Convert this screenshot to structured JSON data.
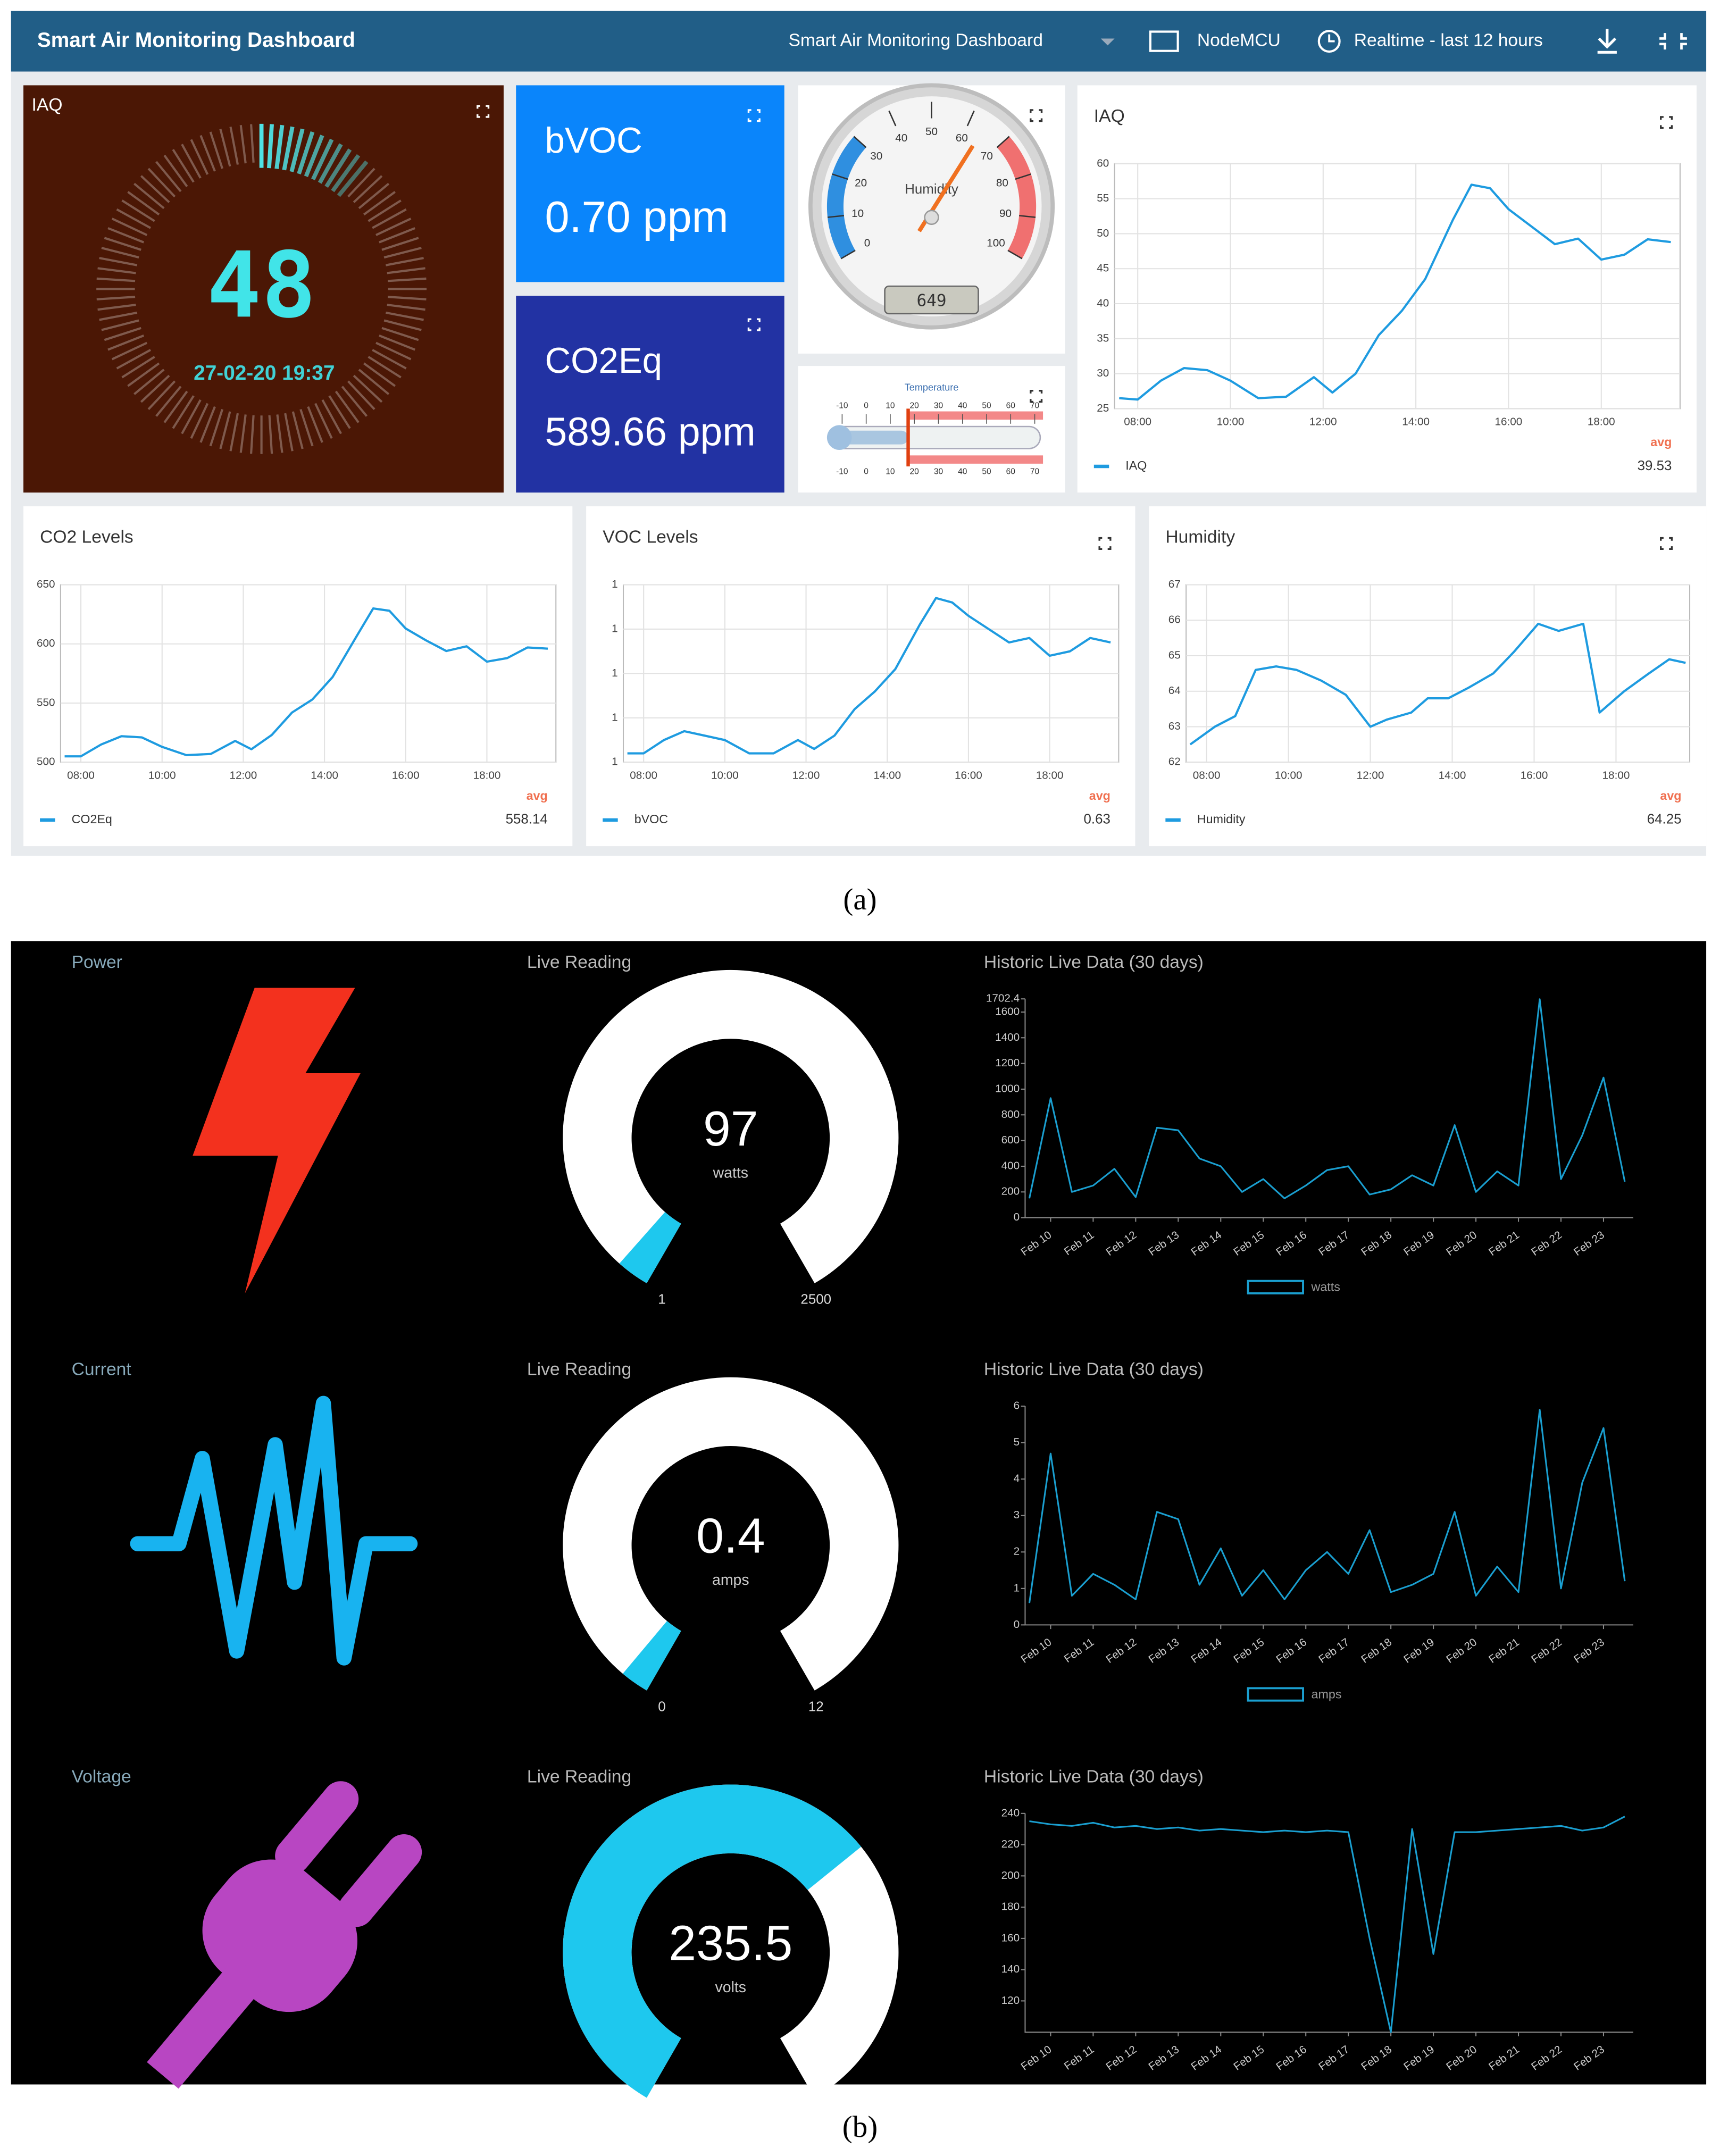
{
  "header": {
    "title": "Smart Air Monitoring Dashboard",
    "dashboard": "Smart Air Monitoring Dashboard",
    "device": "NodeMCU",
    "time_range": "Realtime - last 12 hours"
  },
  "panel_a": {
    "iaq_gauge": {
      "title": "IAQ",
      "value": "48",
      "timestamp": "27-02-20 19:37"
    },
    "bvoc": {
      "title": "bVOC",
      "value": "0.70 ppm"
    },
    "co2eq": {
      "title": "CO2Eq",
      "value": "589.66 ppm"
    },
    "humidity_gauge": {
      "label": "Humidity",
      "ticks": [
        0,
        10,
        20,
        30,
        40,
        50,
        60,
        70,
        80,
        90,
        100
      ],
      "display": "649"
    },
    "temperature": {
      "title": "Temperature",
      "ticks": [
        -10,
        0,
        10,
        20,
        30,
        40,
        50,
        60,
        70
      ]
    },
    "charts": [
      {
        "type": "line",
        "title": "IAQ",
        "x": [
          7.6,
          8.0,
          8.5,
          9.0,
          9.5,
          10.0,
          10.6,
          11.2,
          11.8,
          12.2,
          12.7,
          13.2,
          13.7,
          14.2,
          14.8,
          15.2,
          15.6,
          16.0,
          16.5,
          17.0,
          17.5,
          18.0,
          18.5,
          19.0,
          19.5
        ],
        "series": [
          {
            "name": "IAQ",
            "color": "#1e9be0",
            "values": [
              26.5,
              26.3,
              29,
              30.8,
              30.5,
              29,
              26.5,
              26.7,
              29.5,
              27.3,
              30,
              35.5,
              39,
              43.5,
              52,
              57,
              56.5,
              53.5,
              51,
              48.5,
              49.3,
              46.3,
              47,
              49.2,
              48.8
            ]
          }
        ],
        "xlim": [
          7.5,
          19.7
        ],
        "xticks": [
          {
            "value": 8,
            "label": "08:00"
          },
          {
            "value": 10,
            "label": "10:00"
          },
          {
            "value": 12,
            "label": "12:00"
          },
          {
            "value": 14,
            "label": "14:00"
          },
          {
            "value": 16,
            "label": "16:00"
          },
          {
            "value": 18,
            "label": "18:00"
          }
        ],
        "ylim": [
          25,
          60
        ],
        "yticks": [
          25,
          30,
          35,
          40,
          45,
          50,
          55,
          60
        ],
        "grid": true,
        "avg_label": "avg",
        "avg": 39.53
      },
      {
        "type": "line",
        "title": "CO2 Levels",
        "x": [
          7.6,
          8.0,
          8.5,
          9.0,
          9.5,
          10.0,
          10.6,
          11.2,
          11.8,
          12.2,
          12.7,
          13.2,
          13.7,
          14.2,
          14.8,
          15.2,
          15.6,
          16.0,
          16.5,
          17.0,
          17.5,
          18.0,
          18.5,
          19.0,
          19.5
        ],
        "series": [
          {
            "name": "CO2Eq",
            "color": "#1e9be0",
            "values": [
              505,
              505,
              515,
              522,
              521,
              513,
              506,
              507,
              518,
              511,
              523,
              542,
              553,
              572,
              607,
              630,
              628,
              613,
              603,
              594,
              598,
              585,
              588,
              597,
              596
            ]
          }
        ],
        "xlim": [
          7.5,
          19.7
        ],
        "xticks": [
          {
            "value": 8,
            "label": "08:00"
          },
          {
            "value": 10,
            "label": "10:00"
          },
          {
            "value": 12,
            "label": "12:00"
          },
          {
            "value": 14,
            "label": "14:00"
          },
          {
            "value": 16,
            "label": "16:00"
          },
          {
            "value": 18,
            "label": "18:00"
          }
        ],
        "ylim": [
          500,
          650
        ],
        "yticks": [
          500,
          550,
          600,
          650
        ],
        "grid": true,
        "avg_label": "avg",
        "avg": 558.14
      },
      {
        "type": "line",
        "title": "VOC Levels",
        "x": [
          7.6,
          8.0,
          8.5,
          9.0,
          9.5,
          10.0,
          10.6,
          11.2,
          11.8,
          12.2,
          12.7,
          13.2,
          13.7,
          14.2,
          14.8,
          15.2,
          15.6,
          16.0,
          16.5,
          17.0,
          17.5,
          18.0,
          18.5,
          19.0,
          19.5
        ],
        "series": [
          {
            "name": "bVOC",
            "color": "#1e9be0",
            "values": [
              0.52,
              0.52,
              0.55,
              0.57,
              0.56,
              0.55,
              0.52,
              0.52,
              0.55,
              0.53,
              0.56,
              0.62,
              0.66,
              0.71,
              0.81,
              0.87,
              0.86,
              0.83,
              0.8,
              0.77,
              0.78,
              0.74,
              0.75,
              0.78,
              0.77
            ]
          }
        ],
        "xlim": [
          7.5,
          19.7
        ],
        "xticks": [
          {
            "value": 8,
            "label": "08:00"
          },
          {
            "value": 10,
            "label": "10:00"
          },
          {
            "value": 12,
            "label": "12:00"
          },
          {
            "value": 14,
            "label": "14:00"
          },
          {
            "value": 16,
            "label": "16:00"
          },
          {
            "value": 18,
            "label": "18:00"
          }
        ],
        "ylim": [
          0.5,
          0.9
        ],
        "yticks": [
          {
            "value": 0.5,
            "label": "1"
          },
          {
            "value": 0.6,
            "label": "1"
          },
          {
            "value": 0.7,
            "label": "1"
          },
          {
            "value": 0.8,
            "label": "1"
          },
          {
            "value": 0.9,
            "label": "1"
          }
        ],
        "grid": true,
        "avg_label": "avg",
        "avg": 0.63
      },
      {
        "type": "line",
        "title": "Humidity",
        "x": [
          7.6,
          8.2,
          8.7,
          9.2,
          9.7,
          10.2,
          10.8,
          11.4,
          12.0,
          12.4,
          13.0,
          13.4,
          13.9,
          14.4,
          15.0,
          15.5,
          16.1,
          16.6,
          17.2,
          17.6,
          18.2,
          18.8,
          19.3,
          19.7
        ],
        "series": [
          {
            "name": "Humidity",
            "color": "#1e9be0",
            "values": [
              62.5,
              63,
              63.3,
              64.6,
              64.7,
              64.6,
              64.3,
              63.9,
              63,
              63.2,
              63.4,
              63.8,
              63.8,
              64.1,
              64.5,
              65.1,
              65.9,
              65.7,
              65.9,
              63.4,
              64,
              64.5,
              64.9,
              64.8
            ]
          }
        ],
        "xlim": [
          7.5,
          19.8
        ],
        "xticks": [
          {
            "value": 8,
            "label": "08:00"
          },
          {
            "value": 10,
            "label": "10:00"
          },
          {
            "value": 12,
            "label": "12:00"
          },
          {
            "value": 14,
            "label": "14:00"
          },
          {
            "value": 16,
            "label": "16:00"
          },
          {
            "value": 18,
            "label": "18:00"
          }
        ],
        "ylim": [
          62,
          67
        ],
        "yticks": [
          62,
          63,
          64,
          65,
          66,
          67
        ],
        "grid": true,
        "avg_label": "avg",
        "avg": 64.25
      }
    ]
  },
  "caption_a": "(a)",
  "panel_b": {
    "rows": [
      {
        "title": "Power",
        "gauge": {
          "label": "Live Reading",
          "value": 97,
          "unit": "watts",
          "min": 1,
          "max": 2500
        },
        "chart": {
          "type": "line",
          "title": "Historic Live Data (30 days)",
          "x": [
            9.5,
            10,
            10.5,
            11,
            11.5,
            12,
            12.5,
            13,
            13.5,
            14,
            14.5,
            15,
            15.5,
            16,
            16.5,
            17,
            17.5,
            18,
            18.5,
            19,
            19.5,
            20,
            20.5,
            21,
            21.5,
            22,
            22.5,
            23,
            23.5
          ],
          "series": [
            {
              "name": "watts",
              "color": "#1a9fd0",
              "values": [
                150,
                930,
                200,
                250,
                380,
                160,
                700,
                680,
                460,
                400,
                200,
                300,
                150,
                250,
                370,
                400,
                180,
                220,
                330,
                250,
                720,
                200,
                360,
                250,
                1700,
                300,
                640,
                1090,
                280
              ]
            }
          ],
          "xlim": [
            9.4,
            23.7
          ],
          "xticks": [
            {
              "value": 10,
              "label": "Feb 10"
            },
            {
              "value": 11,
              "label": "Feb 11"
            },
            {
              "value": 12,
              "label": "Feb 12"
            },
            {
              "value": 13,
              "label": "Feb 13"
            },
            {
              "value": 14,
              "label": "Feb 14"
            },
            {
              "value": 15,
              "label": "Feb 15"
            },
            {
              "value": 16,
              "label": "Feb 16"
            },
            {
              "value": 17,
              "label": "Feb 17"
            },
            {
              "value": 18,
              "label": "Feb 18"
            },
            {
              "value": 19,
              "label": "Feb 19"
            },
            {
              "value": 20,
              "label": "Feb 20"
            },
            {
              "value": 21,
              "label": "Feb 21"
            },
            {
              "value": 22,
              "label": "Feb 22"
            },
            {
              "value": 23,
              "label": "Feb 23"
            }
          ],
          "ylim": [
            0,
            1702.4
          ],
          "yticks": [
            0,
            200,
            400,
            600,
            800,
            1000,
            1200,
            1400,
            1600,
            1702.4
          ]
        }
      },
      {
        "title": "Current",
        "gauge": {
          "label": "Live Reading",
          "value": 0.4,
          "unit": "amps",
          "min": 0,
          "max": 12
        },
        "chart": {
          "type": "line",
          "title": "Historic Live Data (30 days)",
          "x": [
            9.5,
            10,
            10.5,
            11,
            11.5,
            12,
            12.5,
            13,
            13.5,
            14,
            14.5,
            15,
            15.5,
            16,
            16.5,
            17,
            17.5,
            18,
            18.5,
            19,
            19.5,
            20,
            20.5,
            21,
            21.5,
            22,
            22.5,
            23,
            23.5
          ],
          "series": [
            {
              "name": "amps",
              "color": "#1a9fd0",
              "values": [
                0.6,
                4.7,
                0.8,
                1.4,
                1.1,
                0.7,
                3.1,
                2.9,
                1.1,
                2.1,
                0.8,
                1.5,
                0.7,
                1.5,
                2.0,
                1.4,
                2.6,
                0.9,
                1.1,
                1.4,
                3.1,
                0.8,
                1.6,
                0.9,
                5.9,
                1.0,
                3.9,
                5.4,
                1.2
              ]
            }
          ],
          "xlim": [
            9.4,
            23.7
          ],
          "xticks": [
            {
              "value": 10,
              "label": "Feb 10"
            },
            {
              "value": 11,
              "label": "Feb 11"
            },
            {
              "value": 12,
              "label": "Feb 12"
            },
            {
              "value": 13,
              "label": "Feb 13"
            },
            {
              "value": 14,
              "label": "Feb 14"
            },
            {
              "value": 15,
              "label": "Feb 15"
            },
            {
              "value": 16,
              "label": "Feb 16"
            },
            {
              "value": 17,
              "label": "Feb 17"
            },
            {
              "value": 18,
              "label": "Feb 18"
            },
            {
              "value": 19,
              "label": "Feb 19"
            },
            {
              "value": 20,
              "label": "Feb 20"
            },
            {
              "value": 21,
              "label": "Feb 21"
            },
            {
              "value": 22,
              "label": "Feb 22"
            },
            {
              "value": 23,
              "label": "Feb 23"
            }
          ],
          "ylim": [
            0,
            6
          ],
          "yticks": [
            0,
            1,
            2,
            3,
            4,
            5,
            6
          ]
        }
      },
      {
        "title": "Voltage",
        "gauge": {
          "label": "Live Reading",
          "value": 235.5,
          "unit": "volts"
        },
        "chart": {
          "type": "line",
          "title": "Historic Live Data (30 days)",
          "x": [
            9.5,
            10,
            10.5,
            11,
            11.5,
            12,
            12.5,
            13,
            13.5,
            14,
            14.5,
            15,
            15.5,
            16,
            16.5,
            17,
            17.5,
            18,
            18.5,
            19,
            19.5,
            20,
            20.5,
            21,
            21.5,
            22,
            22.5,
            23,
            23.5
          ],
          "series": [
            {
              "color": "#1a9fd0",
              "values": [
                235,
                233,
                232,
                234,
                231,
                232,
                230,
                231,
                229,
                230,
                229,
                228,
                229,
                228,
                229,
                228,
                160,
                100,
                230,
                150,
                228,
                228,
                229,
                230,
                231,
                232,
                229,
                231,
                238
              ]
            }
          ],
          "xlim": [
            9.4,
            23.7
          ],
          "xticks": [
            {
              "value": 10,
              "label": "Feb 10"
            },
            {
              "value": 11,
              "label": "Feb 11"
            },
            {
              "value": 12,
              "label": "Feb 12"
            },
            {
              "value": 13,
              "label": "Feb 13"
            },
            {
              "value": 14,
              "label": "Feb 14"
            },
            {
              "value": 15,
              "label": "Feb 15"
            },
            {
              "value": 16,
              "label": "Feb 16"
            },
            {
              "value": 17,
              "label": "Feb 17"
            },
            {
              "value": 18,
              "label": "Feb 18"
            },
            {
              "value": 19,
              "label": "Feb 19"
            },
            {
              "value": 20,
              "label": "Feb 20"
            },
            {
              "value": 21,
              "label": "Feb 21"
            },
            {
              "value": 22,
              "label": "Feb 22"
            },
            {
              "value": 23,
              "label": "Feb 23"
            }
          ],
          "ylim": [
            100,
            240
          ],
          "yticks": [
            120,
            140,
            160,
            180,
            200,
            220,
            240
          ]
        }
      }
    ]
  },
  "caption_b": "(b)"
}
